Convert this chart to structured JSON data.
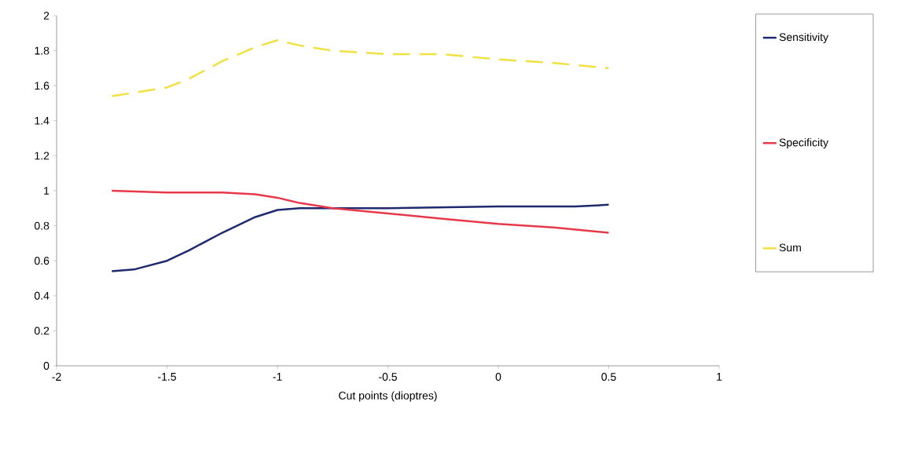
{
  "chart_data": {
    "type": "line",
    "xlabel": "Cut points (dioptres)",
    "xlim": [
      -2,
      1
    ],
    "xticks": [
      -2,
      -1.5,
      -1,
      -0.5,
      0,
      0.5,
      1
    ],
    "ylim": [
      0,
      2
    ],
    "yticks": [
      0,
      0.2,
      0.4,
      0.6,
      0.8,
      1,
      1.2,
      1.4,
      1.6,
      1.8,
      2
    ],
    "grid": false,
    "legend": "right",
    "marker": "none",
    "series": [
      {
        "name": "Sensitivity",
        "color": "#1f2a6e",
        "line_style": "solid",
        "x": [
          -1.75,
          -1.65,
          -1.5,
          -1.4,
          -1.25,
          -1.1,
          -1,
          -0.9,
          -0.5,
          0,
          0.35,
          0.5
        ],
        "values": [
          0.54,
          0.55,
          0.6,
          0.66,
          0.76,
          0.85,
          0.89,
          0.9,
          0.9,
          0.91,
          0.91,
          0.92
        ]
      },
      {
        "name": "Specificity",
        "color": "#e8394b",
        "line_style": "solid",
        "x": [
          -1.75,
          -1.5,
          -1.25,
          -1.1,
          -1,
          -0.9,
          -0.75,
          -0.5,
          -0.25,
          0,
          0.25,
          0.5
        ],
        "values": [
          1.0,
          0.99,
          0.99,
          0.98,
          0.96,
          0.93,
          0.9,
          0.87,
          0.84,
          0.81,
          0.79,
          0.76
        ]
      },
      {
        "name": "Sum",
        "color": "#f0e040",
        "line_style": "dashed",
        "x": [
          -1.75,
          -1.65,
          -1.5,
          -1.4,
          -1.25,
          -1.1,
          -1,
          -0.9,
          -0.75,
          -0.5,
          -0.25,
          0,
          0.25,
          0.5
        ],
        "values": [
          1.54,
          1.56,
          1.59,
          1.64,
          1.74,
          1.82,
          1.86,
          1.83,
          1.8,
          1.78,
          1.78,
          1.75,
          1.73,
          1.7
        ]
      }
    ]
  }
}
